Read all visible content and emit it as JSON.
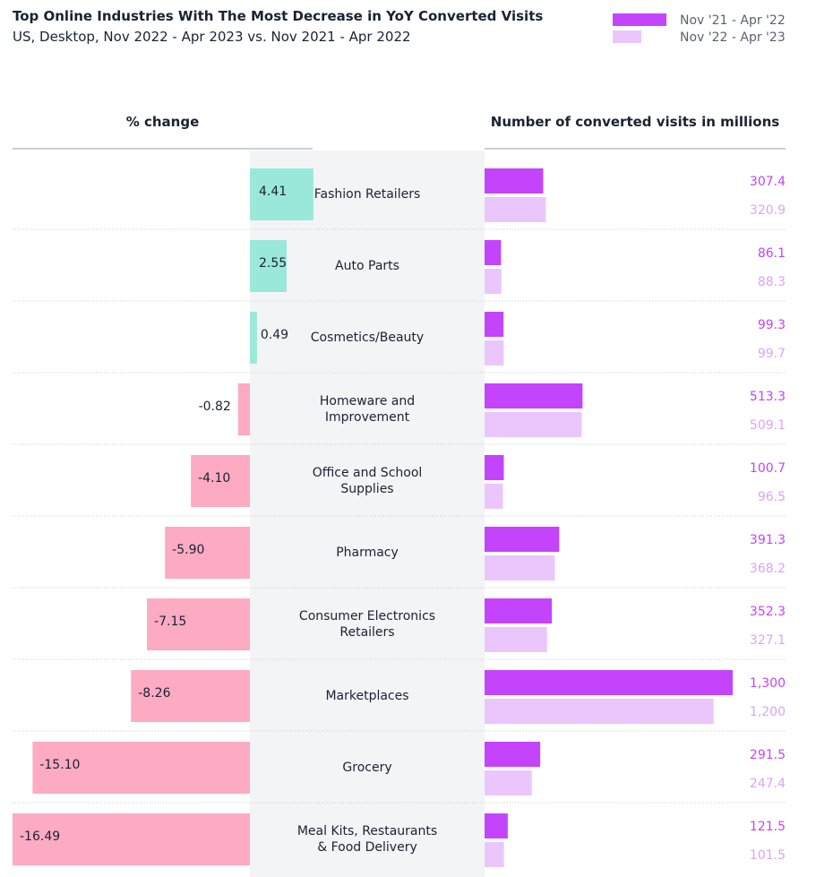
{
  "chart_data": {
    "type": "butterfly",
    "title": "Top Online Industries With The Most Decrease in YoY Converted Visits",
    "subtitle": "US, Desktop, Nov 2022 - Apr 2023 vs. Nov 2021 - Apr 2022",
    "change_axis_label": "% change",
    "visits_axis_label": "Number of converted visits in millions",
    "categories": [
      "Fashion Retailers",
      "Auto Parts",
      "Cosmetics/Beauty",
      "Homeware and Improvement",
      "Office and School Supplies",
      "Pharmacy",
      "Consumer Electronics Retailers",
      "Marketplaces",
      "Grocery",
      "Meal Kits, Restaurants & Food Delivery"
    ],
    "values": [
      4.41,
      2.55,
      0.49,
      -0.82,
      -4.1,
      -5.9,
      -7.15,
      -8.26,
      -15.1,
      -16.49
    ],
    "value_labels": [
      "4.41",
      "2.55",
      "0.49",
      "-0.82",
      "-4.10",
      "-5.90",
      "-7.15",
      "-8.26",
      "-15.10",
      "-16.49"
    ],
    "positive_color": "#9ae8d9",
    "negative_color": "#fdaac3",
    "series": [
      {
        "name": "Nov '21 - Apr '22",
        "color": "#c444fb",
        "label_color": "#c444fb",
        "values": [
          307.4,
          86.1,
          99.3,
          513.3,
          100.7,
          391.3,
          352.3,
          1300,
          291.5,
          121.5
        ],
        "value_labels": [
          "307.4",
          "86.1",
          "99.3",
          "513.3",
          "100.7",
          "391.3",
          "352.3",
          "1,300",
          "291.5",
          "121.5"
        ]
      },
      {
        "name": "Nov '22 - Apr '23",
        "color": "#ebc6fc",
        "label_color": "#dba4f5",
        "values": [
          320.9,
          88.3,
          99.7,
          509.1,
          96.5,
          368.2,
          327.1,
          1200,
          247.4,
          101.5
        ],
        "value_labels": [
          "320.9",
          "88.3",
          "99.7",
          "509.1",
          "96.5",
          "368.2",
          "327.1",
          "1,200",
          "247.4",
          "101.5"
        ]
      }
    ]
  }
}
